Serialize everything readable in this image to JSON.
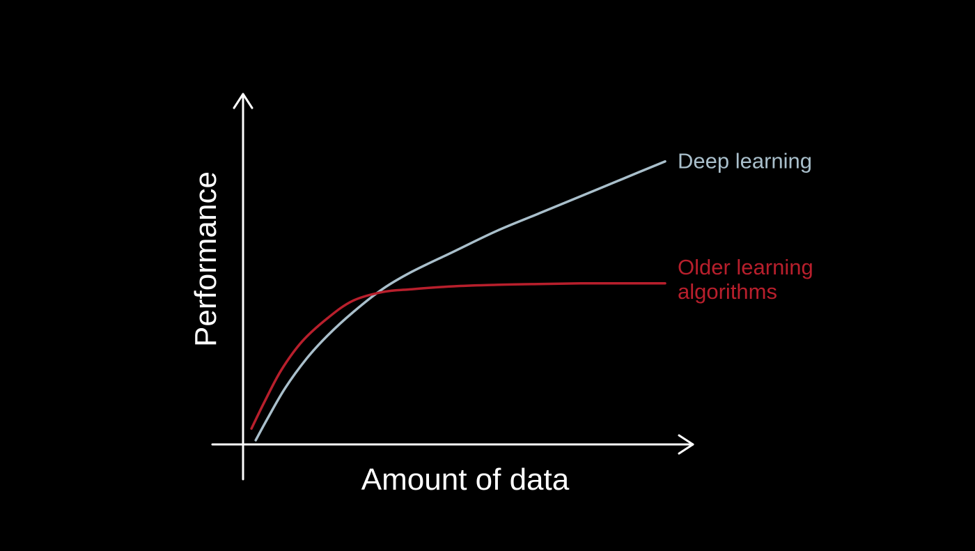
{
  "chart_data": {
    "type": "line",
    "title": "",
    "xlabel": "Amount of data",
    "ylabel": "Performance",
    "grid": false,
    "legend": "inline labels at line ends",
    "ticks": false,
    "xlim": [
      0,
      100
    ],
    "ylim": [
      0,
      100
    ],
    "series": [
      {
        "name": "Deep learning",
        "color": "#a9bfcb",
        "x": [
          3,
          6,
          10,
          15,
          20,
          26,
          33,
          40,
          50,
          60,
          70,
          80,
          90,
          100
        ],
        "y": [
          0,
          8,
          18,
          28,
          36,
          44,
          52,
          58,
          65,
          72,
          78,
          84,
          90,
          96
        ]
      },
      {
        "name": "Older learning algorithms",
        "color": "#b81f2c",
        "label_lines": [
          "Older learning",
          "algorithms"
        ],
        "x": [
          2,
          5,
          9,
          14,
          20,
          26,
          33,
          40,
          50,
          60,
          70,
          80,
          90,
          100
        ],
        "y": [
          4,
          13,
          24,
          34,
          42,
          48,
          51,
          52,
          53,
          53.5,
          53.8,
          54,
          54,
          54
        ]
      }
    ]
  }
}
